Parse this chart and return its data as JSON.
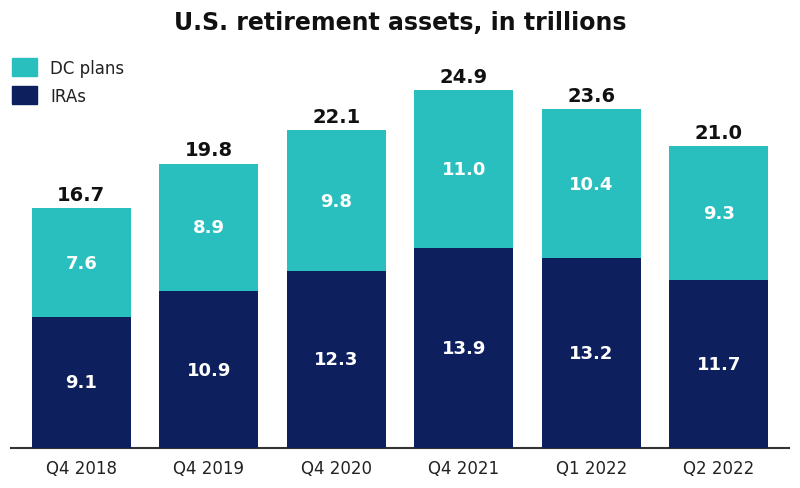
{
  "categories": [
    "Q4 2018",
    "Q4 2019",
    "Q4 2020",
    "Q4 2021",
    "Q1 2022",
    "Q2 2022"
  ],
  "iras": [
    9.1,
    10.9,
    12.3,
    13.9,
    13.2,
    11.7
  ],
  "dc_plans": [
    7.6,
    8.9,
    9.8,
    11.0,
    10.4,
    9.3
  ],
  "totals": [
    16.7,
    19.8,
    22.1,
    24.9,
    23.6,
    21.0
  ],
  "ira_color": "#0d1f5c",
  "dc_color": "#2abfbf",
  "background_color": "#ffffff",
  "title": "U.S. retirement assets, in trillions",
  "legend_dc": "DC plans",
  "legend_ira": "IRAs",
  "title_fontsize": 17,
  "label_fontsize_inside": 13,
  "label_fontsize_total": 14,
  "tick_fontsize": 12,
  "bar_width": 0.78
}
